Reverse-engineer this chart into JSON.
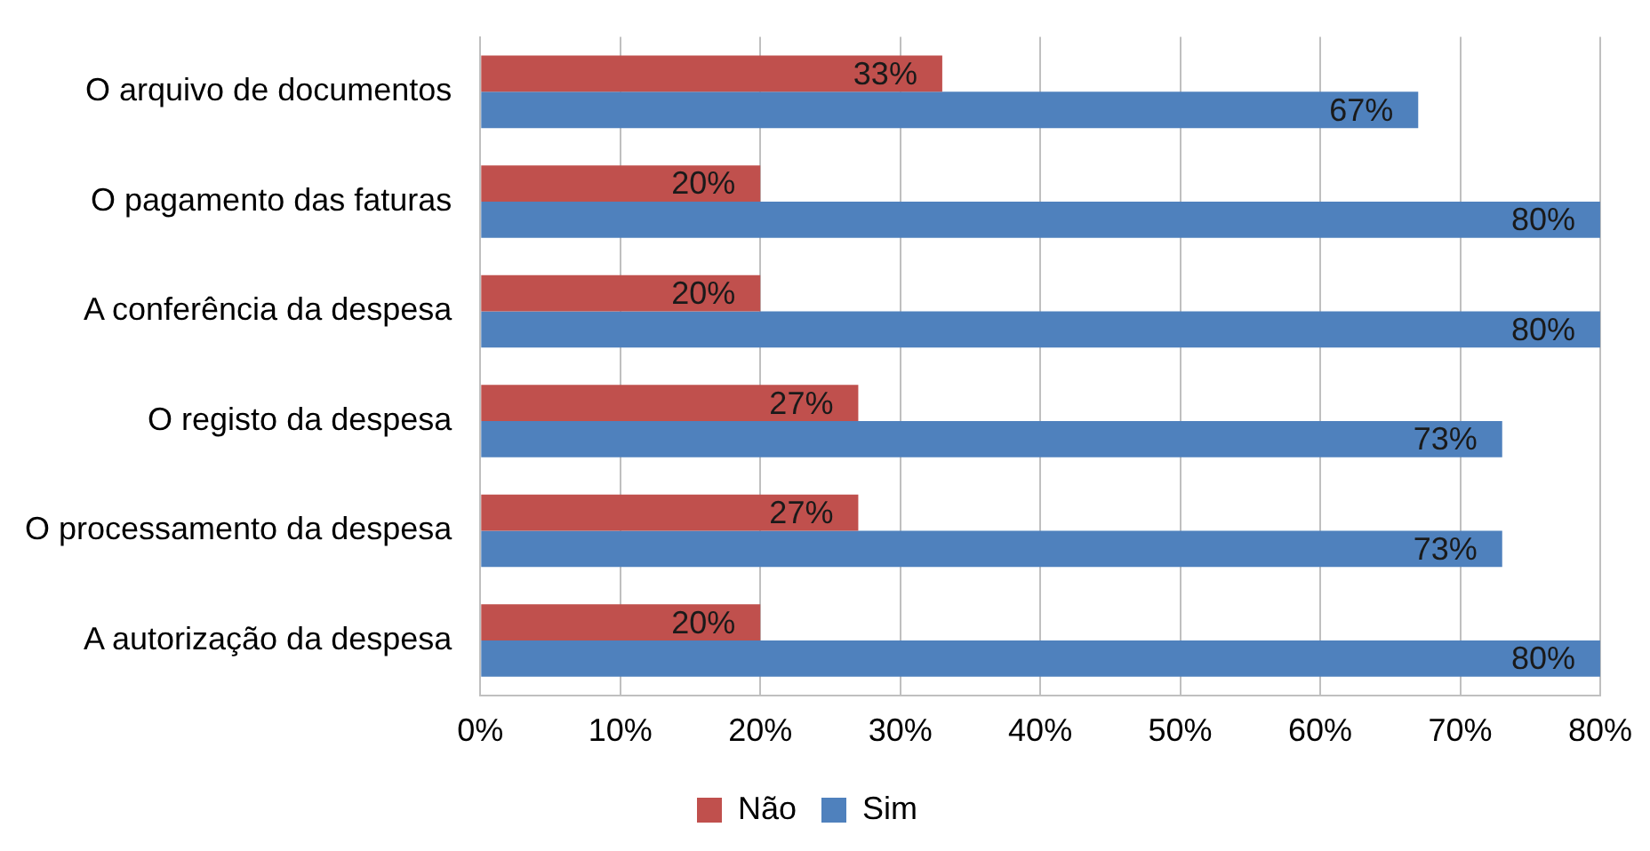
{
  "chart_data": {
    "type": "bar",
    "orientation": "horizontal",
    "categories": [
      "O arquivo de documentos",
      "O pagamento das faturas",
      "A conferência da despesa",
      "O registo da despesa",
      "O processamento da despesa",
      "A autorização da despesa"
    ],
    "series": [
      {
        "name": "Não",
        "color": "#c0504d",
        "values": [
          33,
          20,
          20,
          27,
          27,
          20
        ],
        "value_labels": [
          "33%",
          "20%",
          "20%",
          "27%",
          "27%",
          "20%"
        ]
      },
      {
        "name": "Sim",
        "color": "#4f81bd",
        "values": [
          67,
          80,
          80,
          73,
          73,
          80
        ],
        "value_labels": [
          "67%",
          "80%",
          "80%",
          "73%",
          "73%",
          "80%"
        ]
      }
    ],
    "xlim": [
      0,
      80
    ],
    "xticks": [
      {
        "value": 0,
        "label": "0%"
      },
      {
        "value": 10,
        "label": "10%"
      },
      {
        "value": 20,
        "label": "20%"
      },
      {
        "value": 30,
        "label": "30%"
      },
      {
        "value": 40,
        "label": "40%"
      },
      {
        "value": 50,
        "label": "50%"
      },
      {
        "value": 60,
        "label": "60%"
      },
      {
        "value": 70,
        "label": "70%"
      },
      {
        "value": 80,
        "label": "80%"
      }
    ],
    "grid": "x",
    "legend": "bottom"
  }
}
